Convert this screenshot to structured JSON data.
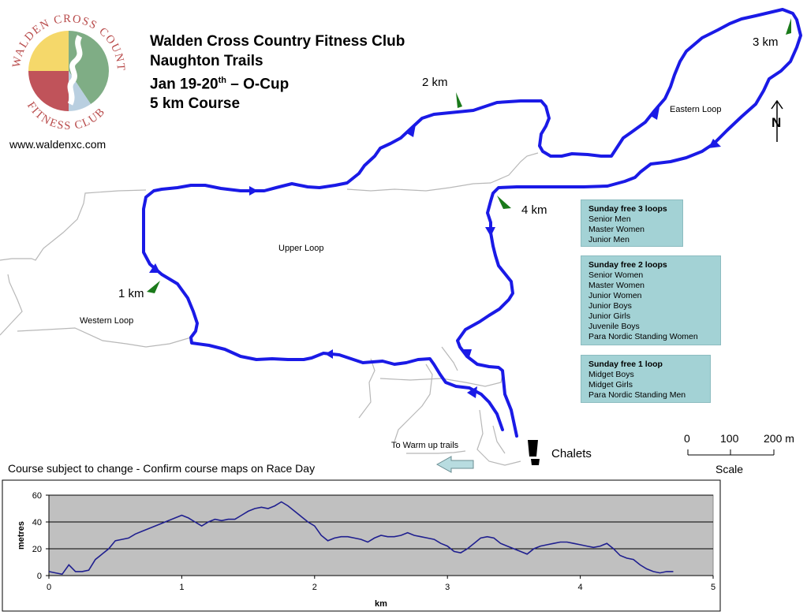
{
  "header": {
    "lines": [
      "Walden Cross Country Fitness Club",
      "Naughton Trails",
      "Jan 19-20",
      "5 km Course"
    ],
    "date_sup": "th",
    "date_tail": " – O-Cup",
    "website": "www.waldenxc.com"
  },
  "logo": {
    "text_top": "WALDEN CROSS COUNTRY",
    "text_bottom": "FITNESS CLUB",
    "colors": [
      "#f5d86a",
      "#7fad85",
      "#c0535a",
      "#b9cfe0"
    ]
  },
  "map": {
    "km_markers": [
      "1 km",
      "2 km",
      "3 km",
      "4 km"
    ],
    "areas": {
      "upper": "Upper Loop",
      "western": "Western Loop",
      "eastern": "Eastern Loop"
    },
    "chalets": "Chalets",
    "warmup": "To Warm up trails",
    "north": "N",
    "course_color": "#1a1ae6",
    "marker_color": "#1a7a1a",
    "trail_color": "#b8b8b8"
  },
  "loops": [
    {
      "title": "Sunday free   3 loops",
      "items": [
        "Senior Men",
        "Master Women",
        "Junior Men"
      ]
    },
    {
      "title": "Sunday  free    2 loops",
      "items": [
        "Senior Women",
        "Master Women",
        "Junior Women",
        "Junior Boys",
        "Junior Girls",
        "Juvenile Boys",
        "Para Nordic Standing Women"
      ]
    },
    {
      "title": "Sunday free  1 loop",
      "items": [
        "Midget Boys",
        "Midget Girls",
        "Para Nordic Standing Men"
      ]
    }
  ],
  "scale": {
    "ticks": [
      "0",
      "100",
      "200 m"
    ],
    "label": "Scale"
  },
  "note": "Course subject to change - Confirm course maps on Race Day",
  "chart_data": {
    "type": "line",
    "xlabel": "km",
    "ylabel": "metres",
    "xlim": [
      0,
      5
    ],
    "ylim": [
      0,
      60
    ],
    "xticks": [
      "0",
      "1",
      "2",
      "3",
      "4",
      "5"
    ],
    "yticks": [
      "0",
      "20",
      "40",
      "60"
    ],
    "plot_bg": "#c0c0c0",
    "line_color": "#1f1f8f",
    "x": [
      0,
      0.05,
      0.1,
      0.15,
      0.2,
      0.25,
      0.3,
      0.35,
      0.4,
      0.45,
      0.5,
      0.55,
      0.6,
      0.65,
      0.7,
      0.75,
      0.8,
      0.85,
      0.9,
      0.95,
      1.0,
      1.05,
      1.1,
      1.15,
      1.2,
      1.25,
      1.3,
      1.35,
      1.4,
      1.45,
      1.5,
      1.55,
      1.6,
      1.65,
      1.7,
      1.75,
      1.8,
      1.85,
      1.9,
      1.95,
      2.0,
      2.05,
      2.1,
      2.15,
      2.2,
      2.25,
      2.3,
      2.35,
      2.4,
      2.45,
      2.5,
      2.55,
      2.6,
      2.65,
      2.7,
      2.75,
      2.8,
      2.85,
      2.9,
      2.95,
      3.0,
      3.05,
      3.1,
      3.15,
      3.2,
      3.25,
      3.3,
      3.35,
      3.4,
      3.45,
      3.5,
      3.55,
      3.6,
      3.65,
      3.7,
      3.75,
      3.8,
      3.85,
      3.9,
      3.95,
      4.0,
      4.05,
      4.1,
      4.15,
      4.2,
      4.25,
      4.3,
      4.35,
      4.4,
      4.45,
      4.5,
      4.55,
      4.6,
      4.65,
      4.7
    ],
    "series": [
      {
        "values": [
          3,
          2,
          1,
          8,
          3,
          3,
          4,
          12,
          16,
          20,
          26,
          27,
          28,
          31,
          33,
          35,
          37,
          39,
          41,
          43,
          45,
          43,
          40,
          37,
          40,
          42,
          41,
          42,
          42,
          45,
          48,
          50,
          51,
          50,
          52,
          55,
          52,
          48,
          44,
          40,
          37,
          30,
          26,
          28,
          29,
          29,
          28,
          27,
          25,
          28,
          30,
          29,
          29,
          30,
          32,
          30,
          29,
          28,
          27,
          24,
          22,
          18,
          17,
          20,
          24,
          28,
          29,
          28,
          24,
          22,
          20,
          18,
          16,
          20,
          22,
          23,
          24,
          25,
          25,
          24,
          23,
          22,
          21,
          22,
          24,
          20,
          15,
          13,
          12,
          8,
          5,
          3,
          2,
          3,
          3
        ]
      }
    ]
  }
}
